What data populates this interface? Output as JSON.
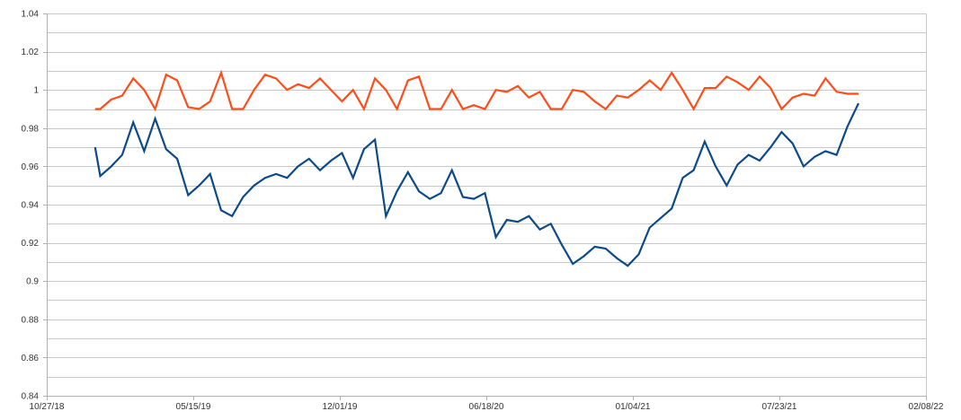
{
  "chart_data": {
    "type": "line",
    "title": "",
    "xlabel": "",
    "ylabel": "",
    "grid": true,
    "legend": "none",
    "xlim": [
      "2018-10-27",
      "2022-02-08"
    ],
    "ylim": [
      0.84,
      1.04
    ],
    "x_ticks": [
      "10/27/18",
      "05/15/19",
      "12/01/19",
      "06/18/20",
      "01/04/21",
      "07/23/21",
      "02/08/22"
    ],
    "y_ticks": [
      "0.84",
      "0.86",
      "0.88",
      "0.9",
      "0.92",
      "0.94",
      "0.96",
      "0.98",
      "1",
      "1.02",
      "1.04"
    ],
    "colors": {
      "blue_series": "#0b4a8b",
      "orange_series": "#ff4d1a",
      "grid": "#c8c8c8"
    },
    "x": [
      "2019-01-01",
      "2019-01-08",
      "2019-01-23",
      "2019-02-07",
      "2019-02-22",
      "2019-03-09",
      "2019-03-24",
      "2019-04-08",
      "2019-04-23",
      "2019-05-08",
      "2019-05-23",
      "2019-06-07",
      "2019-06-22",
      "2019-07-07",
      "2019-07-22",
      "2019-08-06",
      "2019-08-21",
      "2019-09-05",
      "2019-09-20",
      "2019-10-05",
      "2019-10-20",
      "2019-11-04",
      "2019-11-19",
      "2019-12-04",
      "2019-12-19",
      "2020-01-03",
      "2020-01-18",
      "2020-02-02",
      "2020-02-17",
      "2020-03-03",
      "2020-03-18",
      "2020-04-02",
      "2020-04-17",
      "2020-05-02",
      "2020-05-17",
      "2020-06-01",
      "2020-06-16",
      "2020-07-01",
      "2020-07-16",
      "2020-07-31",
      "2020-08-15",
      "2020-08-30",
      "2020-09-14",
      "2020-09-29",
      "2020-10-14",
      "2020-10-29",
      "2020-11-13",
      "2020-11-28",
      "2020-12-13",
      "2020-12-28",
      "2021-01-12",
      "2021-01-27",
      "2021-02-11",
      "2021-02-26",
      "2021-03-13",
      "2021-03-28",
      "2021-04-12",
      "2021-04-27",
      "2021-05-12",
      "2021-05-27",
      "2021-06-11",
      "2021-06-26",
      "2021-07-11",
      "2021-07-26",
      "2021-08-10",
      "2021-08-25",
      "2021-09-09",
      "2021-09-24",
      "2021-10-09",
      "2021-10-24",
      "2021-11-08"
    ],
    "series": [
      {
        "values": [
          0.97,
          0.955,
          0.96,
          0.966,
          0.983,
          0.968,
          0.985,
          0.969,
          0.964,
          0.945,
          0.95,
          0.956,
          0.937,
          0.934,
          0.944,
          0.95,
          0.954,
          0.956,
          0.954,
          0.96,
          0.964,
          0.958,
          0.963,
          0.967,
          0.954,
          0.969,
          0.974,
          0.934,
          0.947,
          0.957,
          0.947,
          0.943,
          0.946,
          0.958,
          0.944,
          0.943,
          0.946,
          0.923,
          0.932,
          0.931,
          0.934,
          0.927,
          0.93,
          0.919,
          0.909,
          0.913,
          0.918,
          0.917,
          0.912,
          0.908,
          0.914,
          0.928,
          0.933,
          0.938,
          0.954,
          0.958,
          0.973,
          0.96,
          0.95,
          0.961,
          0.966,
          0.963,
          0.97,
          0.978,
          0.972,
          0.96,
          0.965,
          0.968,
          0.966,
          0.981,
          0.993
        ]
      },
      {
        "values": [
          0.99,
          0.99,
          0.995,
          0.997,
          1.006,
          1.0,
          0.99,
          1.008,
          1.005,
          0.991,
          0.99,
          0.994,
          1.009,
          0.99,
          0.99,
          1.0,
          1.008,
          1.006,
          1.0,
          1.003,
          1.001,
          1.006,
          1.0,
          0.994,
          1.0,
          0.99,
          1.006,
          1.0,
          0.99,
          1.005,
          1.007,
          0.99,
          0.99,
          1.0,
          0.99,
          0.992,
          0.99,
          1.0,
          0.999,
          1.002,
          0.996,
          0.999,
          0.99,
          0.99,
          1.0,
          0.999,
          0.994,
          0.99,
          0.997,
          0.996,
          1.0,
          1.005,
          1.0,
          1.009,
          1.0,
          0.99,
          1.001,
          1.001,
          1.007,
          1.004,
          1.0,
          1.007,
          1.001,
          0.99,
          0.996,
          0.998,
          0.997,
          1.006,
          0.999,
          0.998,
          0.998
        ]
      }
    ]
  }
}
